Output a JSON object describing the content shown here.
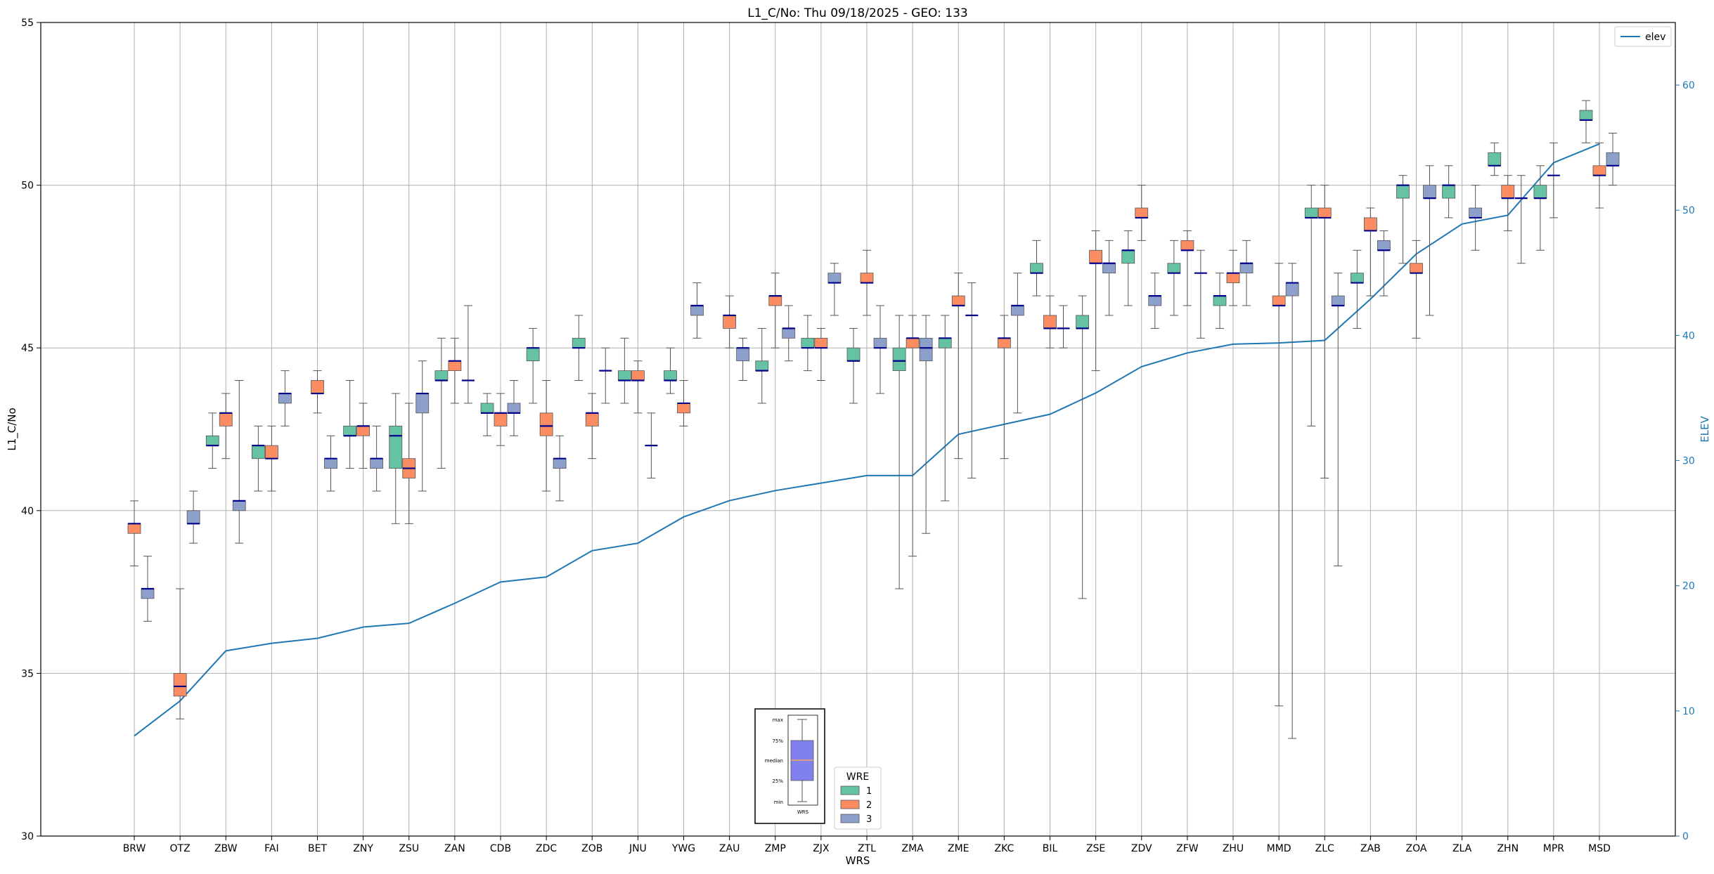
{
  "chart_data": {
    "type": "boxplot",
    "title": "L1_C/No: Thu 09/18/2025 - GEO: 133",
    "xlabel": "WRS",
    "ylabel": "L1_C/No",
    "ylabel_right": "ELEV",
    "ylim": [
      30,
      55
    ],
    "ylim_right": [
      0,
      65
    ],
    "yticks": [
      "30",
      "35",
      "40",
      "45",
      "50",
      "55"
    ],
    "yticks_right": [
      "0",
      "10",
      "20",
      "30",
      "40",
      "50",
      "60"
    ],
    "grid": true,
    "categories": [
      "BRW",
      "OTZ",
      "ZBW",
      "FAI",
      "BET",
      "ZNY",
      "ZSU",
      "ZAN",
      "CDB",
      "ZDC",
      "ZOB",
      "JNU",
      "YWG",
      "ZAU",
      "ZMP",
      "ZJX",
      "ZTL",
      "ZMA",
      "ZME",
      "ZKC",
      "BIL",
      "ZSE",
      "ZDV",
      "ZFW",
      "ZHU",
      "MMD",
      "ZLC",
      "ZAB",
      "ZOA",
      "ZLA",
      "ZHN",
      "MPR",
      "MSD"
    ],
    "series": [
      {
        "name": "1",
        "color": "#66c2a5",
        "data": [
          null,
          null,
          {
            "min": 41.3,
            "q1": 42.0,
            "med": 42.0,
            "q3": 42.3,
            "max": 43.0
          },
          {
            "min": 40.6,
            "q1": 41.6,
            "med": 42.0,
            "q3": 42.0,
            "max": 42.6
          },
          null,
          {
            "min": 41.3,
            "q1": 42.3,
            "med": 42.3,
            "q3": 42.6,
            "max": 44.0
          },
          {
            "min": 39.6,
            "q1": 41.3,
            "med": 42.3,
            "q3": 42.6,
            "max": 43.6
          },
          {
            "min": 41.3,
            "q1": 44.0,
            "med": 44.0,
            "q3": 44.3,
            "max": 45.3
          },
          {
            "min": 42.3,
            "q1": 43.0,
            "med": 43.0,
            "q3": 43.3,
            "max": 43.6
          },
          {
            "min": 43.3,
            "q1": 44.6,
            "med": 45.0,
            "q3": 45.0,
            "max": 45.6
          },
          {
            "min": 44.0,
            "q1": 45.0,
            "med": 45.0,
            "q3": 45.3,
            "max": 46.0
          },
          {
            "min": 43.3,
            "q1": 44.0,
            "med": 44.0,
            "q3": 44.3,
            "max": 45.3
          },
          {
            "min": 43.6,
            "q1": 44.0,
            "med": 44.0,
            "q3": 44.3,
            "max": 45.0
          },
          null,
          {
            "min": 43.3,
            "q1": 44.3,
            "med": 44.3,
            "q3": 44.6,
            "max": 45.6
          },
          {
            "min": 44.3,
            "q1": 45.0,
            "med": 45.0,
            "q3": 45.3,
            "max": 46.0
          },
          {
            "min": 43.3,
            "q1": 44.6,
            "med": 44.6,
            "q3": 45.0,
            "max": 45.6
          },
          {
            "min": 37.6,
            "q1": 44.3,
            "med": 44.6,
            "q3": 45.0,
            "max": 46.0
          },
          {
            "min": 40.3,
            "q1": 45.0,
            "med": 45.3,
            "q3": 45.3,
            "max": 46.0
          },
          null,
          {
            "min": 46.6,
            "q1": 47.3,
            "med": 47.3,
            "q3": 47.6,
            "max": 48.3
          },
          {
            "min": 37.3,
            "q1": 45.6,
            "med": 45.6,
            "q3": 46.0,
            "max": 46.6
          },
          {
            "min": 46.3,
            "q1": 47.6,
            "med": 48.0,
            "q3": 48.0,
            "max": 48.6
          },
          {
            "min": 46.0,
            "q1": 47.3,
            "med": 47.3,
            "q3": 47.6,
            "max": 48.3
          },
          {
            "min": 45.6,
            "q1": 46.3,
            "med": 46.6,
            "q3": 46.6,
            "max": 47.3
          },
          null,
          {
            "min": 42.6,
            "q1": 49.0,
            "med": 49.0,
            "q3": 49.3,
            "max": 50.0
          },
          {
            "min": 45.6,
            "q1": 47.0,
            "med": 47.0,
            "q3": 47.3,
            "max": 48.0
          },
          {
            "min": 47.6,
            "q1": 49.6,
            "med": 50.0,
            "q3": 50.0,
            "max": 50.3
          },
          {
            "min": 49.0,
            "q1": 49.6,
            "med": 50.0,
            "q3": 50.0,
            "max": 50.6
          },
          {
            "min": 50.3,
            "q1": 50.6,
            "med": 50.6,
            "q3": 51.0,
            "max": 51.3
          },
          {
            "min": 48.0,
            "q1": 49.6,
            "med": 49.6,
            "q3": 50.0,
            "max": 50.6
          },
          {
            "min": 51.3,
            "q1": 52.0,
            "med": 52.0,
            "q3": 52.3,
            "max": 52.6
          }
        ]
      },
      {
        "name": "2",
        "color": "#fc8d62",
        "data": [
          {
            "min": 38.3,
            "q1": 39.3,
            "med": 39.6,
            "q3": 39.6,
            "max": 40.3
          },
          {
            "min": 33.6,
            "q1": 34.3,
            "med": 34.6,
            "q3": 35.0,
            "max": 37.6
          },
          {
            "min": 41.6,
            "q1": 42.6,
            "med": 43.0,
            "q3": 43.0,
            "max": 43.6
          },
          {
            "min": 40.6,
            "q1": 41.6,
            "med": 41.6,
            "q3": 42.0,
            "max": 42.6
          },
          {
            "min": 43.0,
            "q1": 43.6,
            "med": 43.6,
            "q3": 44.0,
            "max": 44.3
          },
          {
            "min": 41.3,
            "q1": 42.3,
            "med": 42.6,
            "q3": 42.6,
            "max": 43.3
          },
          {
            "min": 39.6,
            "q1": 41.0,
            "med": 41.3,
            "q3": 41.6,
            "max": 43.3
          },
          {
            "min": 43.3,
            "q1": 44.3,
            "med": 44.6,
            "q3": 44.6,
            "max": 45.3
          },
          {
            "min": 42.0,
            "q1": 42.6,
            "med": 43.0,
            "q3": 43.0,
            "max": 43.6
          },
          {
            "min": 40.6,
            "q1": 42.3,
            "med": 42.6,
            "q3": 43.0,
            "max": 44.0
          },
          {
            "min": 41.6,
            "q1": 42.6,
            "med": 43.0,
            "q3": 43.0,
            "max": 43.6
          },
          {
            "min": 43.0,
            "q1": 44.0,
            "med": 44.0,
            "q3": 44.3,
            "max": 44.6
          },
          {
            "min": 42.6,
            "q1": 43.0,
            "med": 43.3,
            "q3": 43.3,
            "max": 44.0
          },
          {
            "min": 45.0,
            "q1": 45.6,
            "med": 46.0,
            "q3": 46.0,
            "max": 46.6
          },
          {
            "min": 45.0,
            "q1": 46.3,
            "med": 46.6,
            "q3": 46.6,
            "max": 47.3
          },
          {
            "min": 44.0,
            "q1": 45.0,
            "med": 45.0,
            "q3": 45.3,
            "max": 45.6
          },
          {
            "min": 46.0,
            "q1": 47.0,
            "med": 47.0,
            "q3": 47.3,
            "max": 48.0
          },
          {
            "min": 38.6,
            "q1": 45.0,
            "med": 45.3,
            "q3": 45.3,
            "max": 46.0
          },
          {
            "min": 41.6,
            "q1": 46.3,
            "med": 46.3,
            "q3": 46.6,
            "max": 47.3
          },
          {
            "min": 41.6,
            "q1": 45.0,
            "med": 45.3,
            "q3": 45.3,
            "max": 46.0
          },
          {
            "min": 45.0,
            "q1": 45.6,
            "med": 45.6,
            "q3": 46.0,
            "max": 46.6
          },
          {
            "min": 44.3,
            "q1": 47.6,
            "med": 47.6,
            "q3": 48.0,
            "max": 48.6
          },
          {
            "min": 48.3,
            "q1": 49.0,
            "med": 49.0,
            "q3": 49.3,
            "max": 50.0
          },
          {
            "min": 46.3,
            "q1": 48.0,
            "med": 48.0,
            "q3": 48.3,
            "max": 48.6
          },
          {
            "min": 46.3,
            "q1": 47.0,
            "med": 47.3,
            "q3": 47.3,
            "max": 48.0
          },
          {
            "min": 34.0,
            "q1": 46.3,
            "med": 46.3,
            "q3": 46.6,
            "max": 47.6
          },
          {
            "min": 41.0,
            "q1": 49.0,
            "med": 49.0,
            "q3": 49.3,
            "max": 50.0
          },
          {
            "min": 46.6,
            "q1": 48.6,
            "med": 48.6,
            "q3": 49.0,
            "max": 49.3
          },
          {
            "min": 45.3,
            "q1": 47.3,
            "med": 47.3,
            "q3": 47.6,
            "max": 48.3
          },
          null,
          {
            "min": 48.6,
            "q1": 49.6,
            "med": 49.6,
            "q3": 50.0,
            "max": 50.3
          },
          {
            "min": 49.0,
            "q1": 50.3,
            "med": 50.3,
            "q3": 50.3,
            "max": 51.3
          },
          {
            "min": 49.3,
            "q1": 50.3,
            "med": 50.3,
            "q3": 50.6,
            "max": 51.3
          }
        ]
      },
      {
        "name": "3",
        "color": "#8da0cb",
        "data": [
          {
            "min": 36.6,
            "q1": 37.3,
            "med": 37.6,
            "q3": 37.6,
            "max": 38.6
          },
          {
            "min": 39.0,
            "q1": 39.6,
            "med": 39.6,
            "q3": 40.0,
            "max": 40.6
          },
          {
            "min": 39.0,
            "q1": 40.0,
            "med": 40.3,
            "q3": 40.3,
            "max": 44.0
          },
          {
            "min": 42.6,
            "q1": 43.3,
            "med": 43.6,
            "q3": 43.6,
            "max": 44.3
          },
          {
            "min": 40.6,
            "q1": 41.3,
            "med": 41.6,
            "q3": 41.6,
            "max": 42.3
          },
          {
            "min": 40.6,
            "q1": 41.3,
            "med": 41.6,
            "q3": 41.6,
            "max": 42.6
          },
          {
            "min": 40.6,
            "q1": 43.0,
            "med": 43.6,
            "q3": 43.6,
            "max": 44.6
          },
          {
            "min": 43.3,
            "q1": 44.0,
            "med": 44.0,
            "q3": 44.0,
            "max": 46.3
          },
          {
            "min": 42.3,
            "q1": 43.0,
            "med": 43.0,
            "q3": 43.3,
            "max": 44.0
          },
          {
            "min": 40.3,
            "q1": 41.3,
            "med": 41.6,
            "q3": 41.6,
            "max": 42.3
          },
          {
            "min": 43.3,
            "q1": 44.3,
            "med": 44.3,
            "q3": 44.3,
            "max": 45.0
          },
          {
            "min": 41.0,
            "q1": 42.0,
            "med": 42.0,
            "q3": 42.0,
            "max": 43.0
          },
          {
            "min": 45.3,
            "q1": 46.0,
            "med": 46.3,
            "q3": 46.3,
            "max": 47.0
          },
          {
            "min": 44.0,
            "q1": 44.6,
            "med": 45.0,
            "q3": 45.0,
            "max": 45.3
          },
          {
            "min": 44.6,
            "q1": 45.3,
            "med": 45.6,
            "q3": 45.6,
            "max": 46.3
          },
          {
            "min": 46.0,
            "q1": 47.0,
            "med": 47.0,
            "q3": 47.3,
            "max": 47.6
          },
          {
            "min": 43.6,
            "q1": 45.0,
            "med": 45.0,
            "q3": 45.3,
            "max": 46.3
          },
          {
            "min": 39.3,
            "q1": 44.6,
            "med": 45.0,
            "q3": 45.3,
            "max": 46.0
          },
          {
            "min": 41.0,
            "q1": 46.0,
            "med": 46.0,
            "q3": 46.0,
            "max": 47.0
          },
          {
            "min": 43.0,
            "q1": 46.0,
            "med": 46.3,
            "q3": 46.3,
            "max": 47.3
          },
          {
            "min": 45.0,
            "q1": 45.6,
            "med": 45.6,
            "q3": 45.6,
            "max": 46.3
          },
          {
            "min": 46.0,
            "q1": 47.3,
            "med": 47.6,
            "q3": 47.6,
            "max": 48.3
          },
          {
            "min": 45.6,
            "q1": 46.3,
            "med": 46.6,
            "q3": 46.6,
            "max": 47.3
          },
          {
            "min": 45.3,
            "q1": 47.3,
            "med": 47.3,
            "q3": 47.3,
            "max": 48.0
          },
          {
            "min": 46.3,
            "q1": 47.3,
            "med": 47.6,
            "q3": 47.6,
            "max": 48.3
          },
          {
            "min": 33.0,
            "q1": 46.6,
            "med": 47.0,
            "q3": 47.0,
            "max": 47.6
          },
          {
            "min": 38.3,
            "q1": 46.3,
            "med": 46.3,
            "q3": 46.6,
            "max": 47.3
          },
          {
            "min": 46.6,
            "q1": 48.0,
            "med": 48.0,
            "q3": 48.3,
            "max": 48.6
          },
          {
            "min": 46.0,
            "q1": 49.6,
            "med": 49.6,
            "q3": 50.0,
            "max": 50.6
          },
          {
            "min": 48.0,
            "q1": 49.0,
            "med": 49.0,
            "q3": 49.3,
            "max": 50.0
          },
          {
            "min": 47.6,
            "q1": 49.6,
            "med": 49.6,
            "q3": 49.6,
            "max": 50.3
          },
          null,
          {
            "min": 50.0,
            "q1": 50.6,
            "med": 50.6,
            "q3": 51.0,
            "max": 51.6
          }
        ]
      }
    ],
    "line_series": {
      "name": "elev",
      "axis": "right",
      "color": "#1f77b4",
      "values": [
        8.0,
        10.8,
        14.8,
        15.4,
        15.8,
        16.7,
        17.0,
        18.6,
        20.3,
        20.7,
        22.8,
        23.4,
        25.5,
        26.8,
        27.6,
        28.2,
        28.8,
        28.8,
        32.1,
        32.9,
        33.7,
        35.4,
        37.5,
        38.6,
        39.3,
        39.4,
        39.6,
        42.9,
        46.5,
        48.9,
        49.6,
        53.8,
        55.3
      ]
    },
    "legends": [
      {
        "position": "top-right",
        "entries": [
          "elev"
        ]
      },
      {
        "position": "bottom-center",
        "title": "WRE",
        "entries": [
          "1",
          "2",
          "3"
        ]
      }
    ],
    "inset_key": {
      "labels": [
        "max",
        "75%",
        "median",
        "25%",
        "min"
      ],
      "xlabel": "WRS",
      "box_color": "#8080ee",
      "median_color": "#f4a460"
    },
    "colors": {
      "median": "#00008b",
      "whisker": "#555555",
      "grid": "#b0b0b0",
      "right_axis": "#1f77b4"
    }
  }
}
